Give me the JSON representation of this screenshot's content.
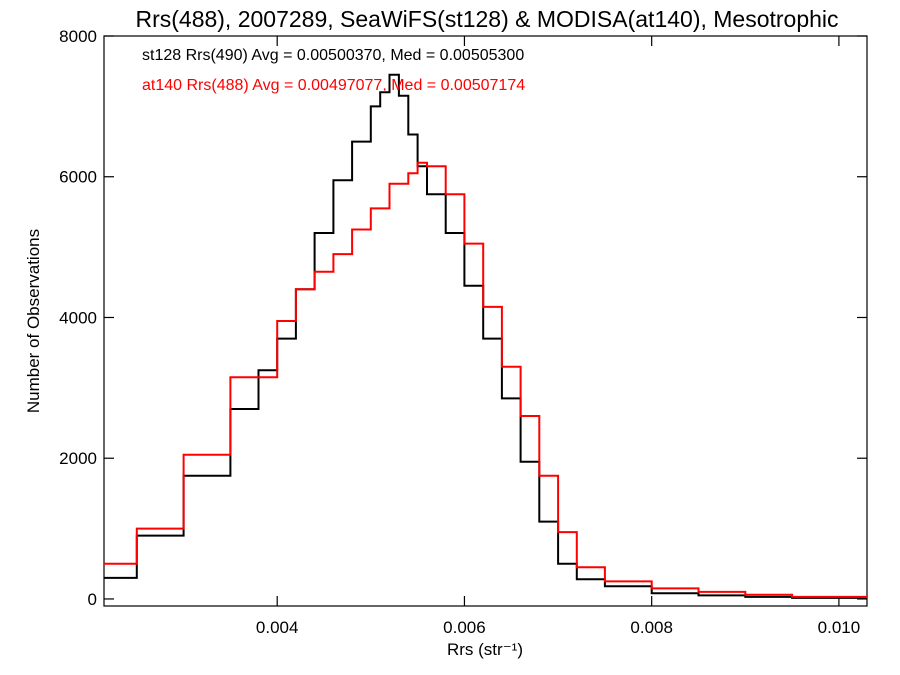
{
  "chart_data": {
    "type": "line",
    "title": "Rrs(488), 2007289, SeaWiFS(st128) & MODISA(at140), Mesotrophic",
    "xlabel": "Rrs (str⁻¹)",
    "ylabel": "Number of Observations",
    "xlim": [
      0.00215,
      0.0103
    ],
    "ylim": [
      -100,
      8000
    ],
    "x_ticks": [
      0.004,
      0.006,
      0.008,
      0.01
    ],
    "x_tick_labels": [
      "0.004",
      "0.006",
      "0.008",
      "0.010"
    ],
    "y_ticks": [
      0,
      2000,
      4000,
      6000,
      8000
    ],
    "y_tick_labels": [
      "0",
      "2000",
      "4000",
      "6000",
      "8000"
    ],
    "grid": false,
    "legend_position": "top-left",
    "series": [
      {
        "name": "st128 Rrs(490) Avg = 0.00500370, Med = 0.00505300",
        "color": "#000000",
        "x": [
          0.00215,
          0.0025,
          0.003,
          0.0035,
          0.0038,
          0.004,
          0.0042,
          0.0044,
          0.0046,
          0.0048,
          0.005,
          0.0051,
          0.0052,
          0.0053,
          0.0054,
          0.0055,
          0.0056,
          0.0058,
          0.006,
          0.0062,
          0.0064,
          0.0066,
          0.0068,
          0.007,
          0.0072,
          0.0075,
          0.008,
          0.0085,
          0.009,
          0.0095,
          0.0103
        ],
        "y": [
          300,
          900,
          1750,
          2700,
          3250,
          3700,
          4400,
          5200,
          5950,
          6500,
          7000,
          7200,
          7450,
          7150,
          6600,
          6150,
          5750,
          5200,
          4450,
          3700,
          2850,
          1950,
          1100,
          500,
          280,
          180,
          80,
          50,
          30,
          15,
          5
        ]
      },
      {
        "name": "at140 Rrs(488) Avg = 0.00497077, Med = 0.00507174",
        "color": "#ff0000",
        "x": [
          0.00215,
          0.0025,
          0.003,
          0.0035,
          0.004,
          0.0042,
          0.0044,
          0.0046,
          0.0048,
          0.005,
          0.0052,
          0.0054,
          0.0055,
          0.0056,
          0.0058,
          0.006,
          0.0062,
          0.0064,
          0.0066,
          0.0068,
          0.007,
          0.0072,
          0.0075,
          0.008,
          0.0085,
          0.009,
          0.0095,
          0.0103
        ],
        "y": [
          500,
          1000,
          2050,
          3150,
          3950,
          4400,
          4650,
          4900,
          5250,
          5550,
          5900,
          6050,
          6200,
          6150,
          5750,
          5050,
          4150,
          3300,
          2600,
          1750,
          950,
          450,
          250,
          150,
          100,
          60,
          30,
          10
        ]
      }
    ]
  }
}
